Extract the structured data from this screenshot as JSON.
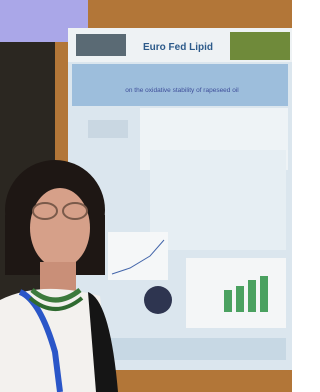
{
  "poster": {
    "logo": "Euro Fed Lipid",
    "title_line": "on the oxidative stability of rapeseed oil"
  }
}
